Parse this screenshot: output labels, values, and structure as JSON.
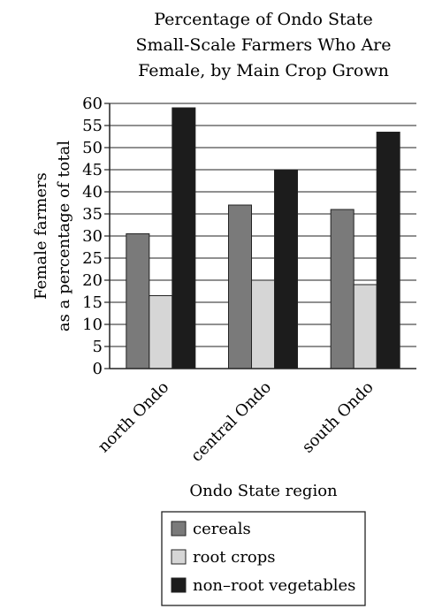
{
  "chart_data": {
    "type": "bar",
    "title_lines": [
      "Percentage of Ondo State",
      "Small-Scale Farmers Who Are",
      "Female, by Main Crop Grown"
    ],
    "xlabel": "Ondo State region",
    "ylabel_lines": [
      "Female farmers",
      "as a percentage of total"
    ],
    "categories": [
      "north Ondo",
      "central Ondo",
      "south Ondo"
    ],
    "ylim": [
      0,
      60
    ],
    "yticks": [
      "0",
      "5",
      "10",
      "15",
      "20",
      "25",
      "30",
      "35",
      "40",
      "45",
      "50",
      "55",
      "60"
    ],
    "grid": true,
    "legend_position": "bottom",
    "series": [
      {
        "name": "cereals",
        "values": [
          30.5,
          37,
          36
        ],
        "color": "#7a7a7a"
      },
      {
        "name": "root crops",
        "values": [
          16.5,
          20,
          19
        ],
        "color": "#d6d6d6"
      },
      {
        "name": "non–root vegetables",
        "values": [
          59,
          45,
          53.5
        ],
        "color": "#1c1c1c"
      }
    ]
  }
}
